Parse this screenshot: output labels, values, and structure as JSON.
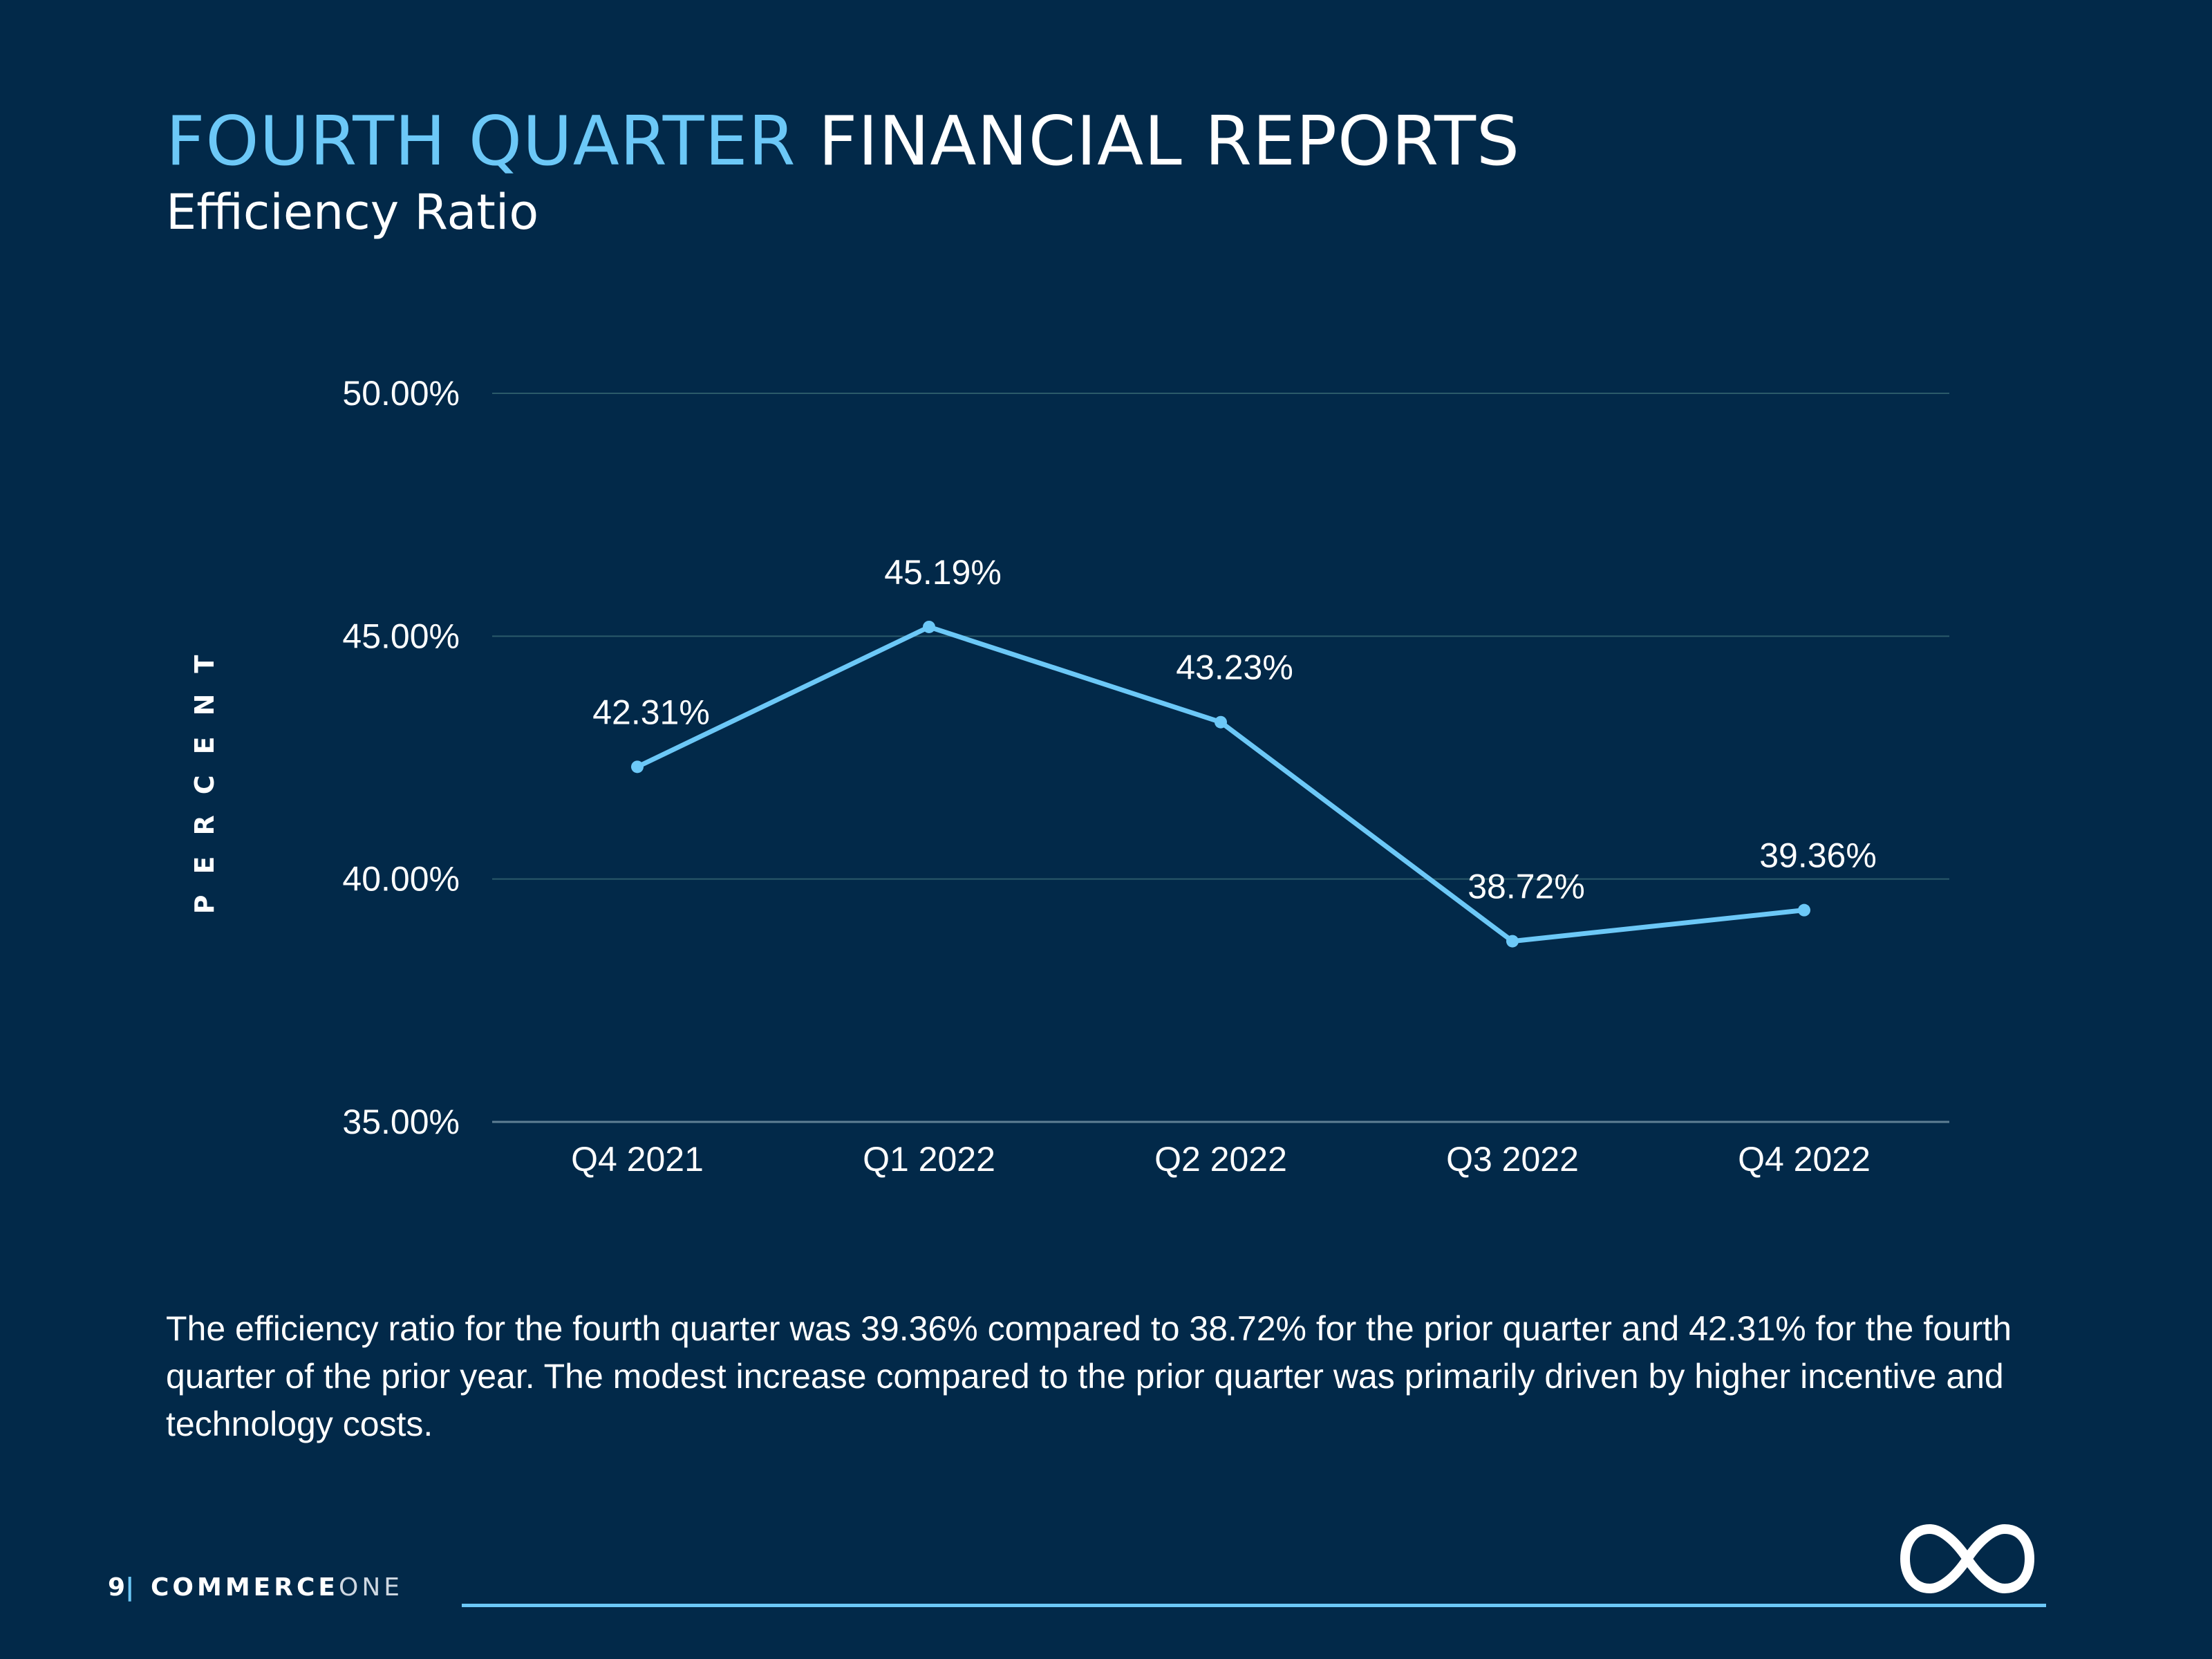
{
  "header": {
    "title_accent": "FOURTH QUARTER",
    "title_rest": "FINANCIAL REPORTS",
    "subtitle": "Efficiency Ratio"
  },
  "colors": {
    "background": "#022949",
    "accent": "#6cc8f7",
    "text": "#ffffff",
    "gridline": "#2b5a6a"
  },
  "chart_data": {
    "type": "line",
    "title": "",
    "xlabel": "",
    "ylabel": "PERCENT",
    "categories": [
      "Q4 2021",
      "Q1 2022",
      "Q2 2022",
      "Q3 2022",
      "Q4 2022"
    ],
    "series": [
      {
        "values": [
          42.31,
          45.19,
          43.23,
          38.72,
          39.36
        ],
        "data_labels": [
          "42.31%",
          "45.19%",
          "43.23%",
          "38.72%",
          "39.36%"
        ]
      }
    ],
    "ylim": [
      35,
      50
    ],
    "yticks": [
      50,
      45,
      40,
      35
    ],
    "ytick_labels": [
      "50.00%",
      "45.00%",
      "40.00%",
      "35.00%"
    ],
    "grid": true,
    "legend": "none",
    "line_color": "#6cc8f7",
    "markers": true
  },
  "description": "The efficiency ratio for the fourth quarter was 39.36% compared to 38.72% for the prior quarter and 42.31% for the fourth quarter of the prior year. The modest increase compared to the prior quarter was primarily driven by higher incentive and technology costs.",
  "footer": {
    "page_number": "9",
    "separator": "|",
    "brand_bold": "COMMERCE",
    "brand_light": "ONE",
    "logo_icon": "infinity-icon"
  }
}
